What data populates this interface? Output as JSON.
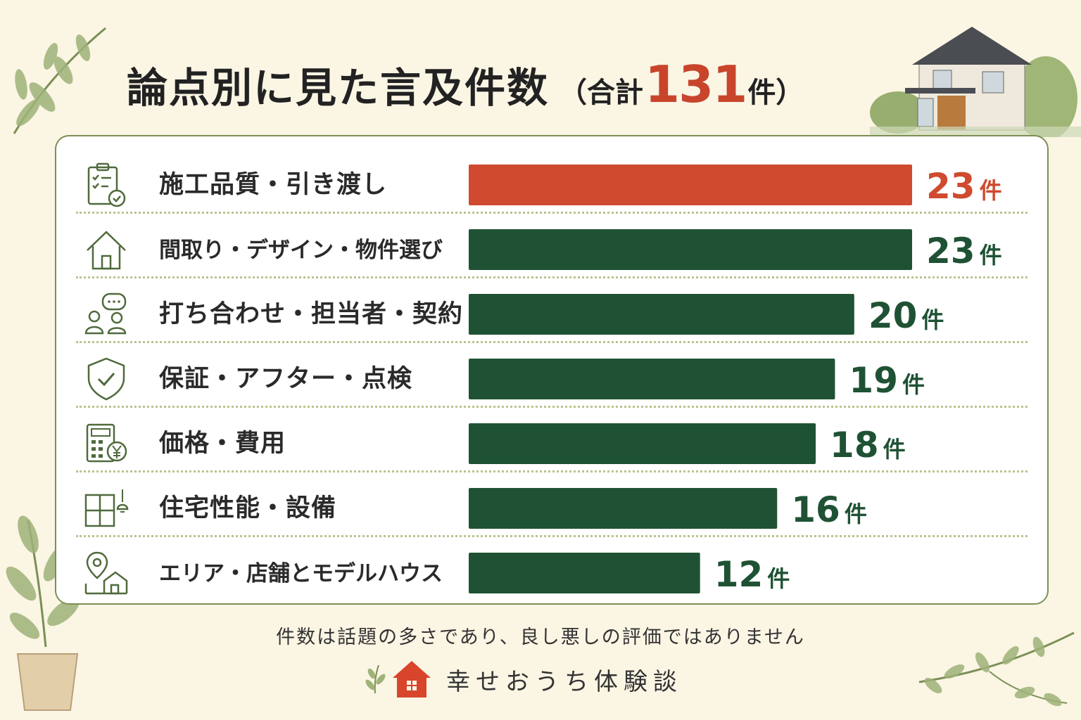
{
  "title": {
    "main": "論点別に見た言及件数",
    "total_prefix": "（合計",
    "total_value": "131",
    "total_suffix": "件）"
  },
  "chart_data": {
    "type": "bar",
    "orientation": "horizontal",
    "unit": "件",
    "categories": [
      "施工品質・引き渡し",
      "間取り・デザイン・物件選び",
      "打ち合わせ・担当者・契約",
      "保証・アフター・点検",
      "価格・費用",
      "住宅性能・設備",
      "エリア・店舗とモデルハウス"
    ],
    "values": [
      23,
      23,
      20,
      19,
      18,
      16,
      12
    ],
    "icons": [
      "clipboard-check-icon",
      "house-icon",
      "people-chat-icon",
      "shield-check-icon",
      "calculator-yen-icon",
      "window-lamp-icon",
      "location-house-icon"
    ],
    "xlim": [
      0,
      23
    ],
    "highlight_index": 0,
    "colors": {
      "highlight": "#cf4a2e",
      "default": "#1f5234"
    },
    "grid": false
  },
  "note": "件数は話題の多さであり、良し悪しの評価ではありません",
  "brand": {
    "name": "幸せおうち体験談",
    "accent": "#d8452b"
  }
}
